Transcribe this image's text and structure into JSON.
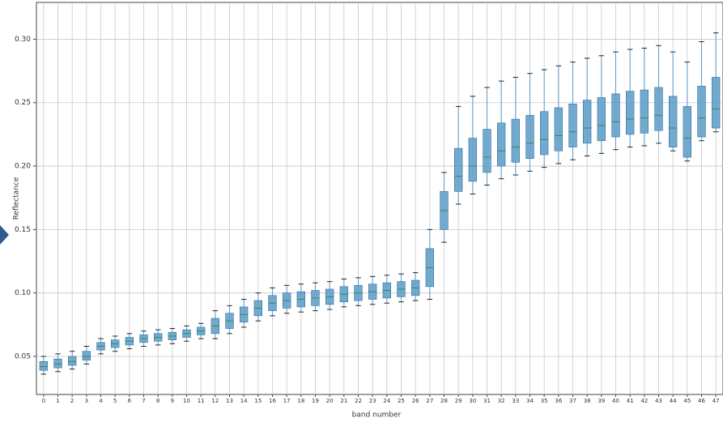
{
  "chart_data": {
    "type": "box",
    "y_label": "Reflectance",
    "x_label": "band number",
    "categories": [
      "0",
      "1",
      "2",
      "3",
      "4",
      "5",
      "6",
      "7",
      "8",
      "9",
      "10",
      "11",
      "12",
      "13",
      "14",
      "15",
      "16",
      "17",
      "18",
      "19",
      "20",
      "21",
      "22",
      "23",
      "24",
      "25",
      "26",
      "27",
      "28",
      "29",
      "30",
      "31",
      "32",
      "33",
      "34",
      "35",
      "36",
      "37",
      "38",
      "39",
      "40",
      "41",
      "42",
      "43",
      "44",
      "45",
      "46",
      "47"
    ],
    "low": [
      0.036,
      0.038,
      0.04,
      0.044,
      0.052,
      0.054,
      0.056,
      0.058,
      0.059,
      0.06,
      0.062,
      0.064,
      0.064,
      0.068,
      0.073,
      0.078,
      0.082,
      0.084,
      0.085,
      0.086,
      0.087,
      0.089,
      0.09,
      0.091,
      0.092,
      0.093,
      0.094,
      0.095,
      0.14,
      0.17,
      0.178,
      0.185,
      0.19,
      0.193,
      0.196,
      0.199,
      0.202,
      0.205,
      0.208,
      0.21,
      0.213,
      0.215,
      0.216,
      0.218,
      0.212,
      0.204,
      0.22,
      0.227
    ],
    "q1": [
      0.039,
      0.041,
      0.043,
      0.047,
      0.055,
      0.057,
      0.059,
      0.061,
      0.062,
      0.063,
      0.065,
      0.067,
      0.068,
      0.072,
      0.077,
      0.082,
      0.086,
      0.088,
      0.089,
      0.09,
      0.091,
      0.093,
      0.094,
      0.095,
      0.096,
      0.097,
      0.098,
      0.105,
      0.15,
      0.18,
      0.188,
      0.195,
      0.2,
      0.203,
      0.206,
      0.209,
      0.212,
      0.215,
      0.218,
      0.22,
      0.223,
      0.225,
      0.226,
      0.228,
      0.215,
      0.207,
      0.223,
      0.23
    ],
    "median": [
      0.042,
      0.044,
      0.046,
      0.05,
      0.058,
      0.06,
      0.062,
      0.064,
      0.065,
      0.066,
      0.068,
      0.07,
      0.074,
      0.078,
      0.083,
      0.088,
      0.092,
      0.094,
      0.095,
      0.096,
      0.097,
      0.099,
      0.1,
      0.101,
      0.102,
      0.103,
      0.104,
      0.12,
      0.165,
      0.192,
      0.2,
      0.207,
      0.212,
      0.215,
      0.218,
      0.221,
      0.224,
      0.227,
      0.23,
      0.232,
      0.235,
      0.237,
      0.238,
      0.24,
      0.23,
      0.222,
      0.238,
      0.245
    ],
    "q3": [
      0.046,
      0.048,
      0.05,
      0.054,
      0.061,
      0.063,
      0.065,
      0.067,
      0.068,
      0.069,
      0.071,
      0.073,
      0.08,
      0.084,
      0.089,
      0.094,
      0.098,
      0.1,
      0.101,
      0.102,
      0.103,
      0.105,
      0.106,
      0.107,
      0.108,
      0.109,
      0.11,
      0.135,
      0.18,
      0.214,
      0.222,
      0.229,
      0.234,
      0.237,
      0.24,
      0.243,
      0.246,
      0.249,
      0.252,
      0.254,
      0.257,
      0.259,
      0.26,
      0.262,
      0.255,
      0.247,
      0.263,
      0.27
    ],
    "high": [
      0.05,
      0.052,
      0.054,
      0.058,
      0.064,
      0.066,
      0.068,
      0.07,
      0.071,
      0.072,
      0.074,
      0.076,
      0.086,
      0.09,
      0.095,
      0.1,
      0.104,
      0.106,
      0.107,
      0.108,
      0.109,
      0.111,
      0.112,
      0.113,
      0.114,
      0.115,
      0.116,
      0.15,
      0.195,
      0.247,
      0.255,
      0.262,
      0.267,
      0.27,
      0.273,
      0.276,
      0.279,
      0.282,
      0.285,
      0.287,
      0.29,
      0.292,
      0.293,
      0.295,
      0.29,
      0.282,
      0.298,
      0.305
    ],
    "color": "#5b9bc8",
    "ylim": [
      0.02,
      0.329
    ],
    "yticks": [
      {
        "value": 0.05,
        "label": "0.05"
      },
      {
        "value": 0.1,
        "label": "0.10"
      },
      {
        "value": 0.15,
        "label": "0.15"
      },
      {
        "value": 0.2,
        "label": "0.20"
      },
      {
        "value": 0.25,
        "label": "0.25"
      },
      {
        "value": 0.3,
        "label": "0.30"
      }
    ],
    "grid": true
  }
}
